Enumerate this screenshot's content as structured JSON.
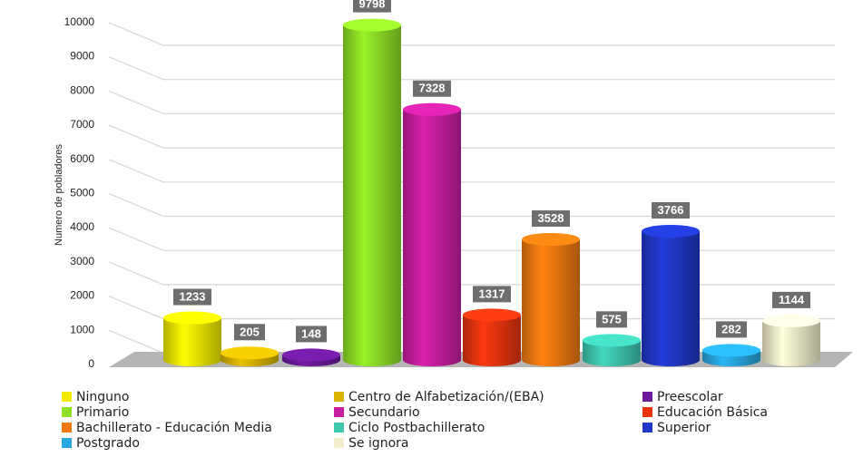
{
  "chart_data": {
    "type": "bar",
    "ylabel": "Numero de pobladores",
    "ylim": [
      0,
      10000
    ],
    "yticks": [
      0,
      1000,
      2000,
      3000,
      4000,
      5000,
      6000,
      7000,
      8000,
      9000,
      10000
    ],
    "grid": true,
    "legend_position": "bottom",
    "categories": [
      "Ninguno",
      "Centro de Alfabetización/(EBA)",
      "Preescolar",
      "Primario",
      "Secundario",
      "Educación Básica",
      "Bachillerato - Educación Media",
      "Ciclo Postbachillerato",
      "Superior",
      "Postgrado",
      "Se ignora"
    ],
    "values": [
      1233,
      205,
      148,
      9798,
      7328,
      1317,
      3528,
      575,
      3766,
      282,
      1144
    ],
    "colors": [
      "#f2ea00",
      "#d8b400",
      "#6a1a9a",
      "#8fe026",
      "#c81fa0",
      "#e83510",
      "#f07a10",
      "#3ec8b0",
      "#2038c8",
      "#28a8e0",
      "#f2eecc"
    ],
    "data_labels": [
      "1233",
      "205",
      "148",
      "9798",
      "7328",
      "1317",
      "3528",
      "575",
      "3766",
      "282",
      "1144"
    ]
  }
}
